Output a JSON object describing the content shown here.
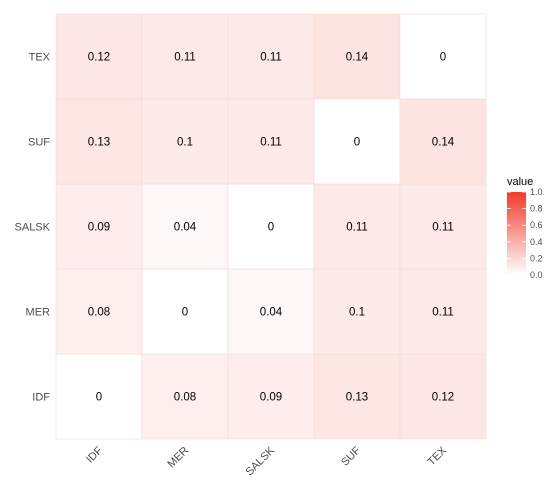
{
  "chart_data": {
    "type": "heatmap",
    "x_categories": [
      "IDF",
      "MER",
      "SALSK",
      "SUF",
      "TEX"
    ],
    "y_categories": [
      "IDF",
      "MER",
      "SALSK",
      "SUF",
      "TEX"
    ],
    "values": [
      [
        0,
        0.08,
        0.09,
        0.13,
        0.12
      ],
      [
        0.08,
        0,
        0.04,
        0.1,
        0.11
      ],
      [
        0.09,
        0.04,
        0,
        0.11,
        0.11
      ],
      [
        0.13,
        0.1,
        0.11,
        0,
        0.14
      ],
      [
        0.12,
        0.11,
        0.11,
        0.14,
        0
      ]
    ],
    "title": "",
    "xlabel": "",
    "ylabel": "",
    "legend": {
      "title": "value",
      "position": "right",
      "range": [
        0,
        1
      ],
      "ticks": [
        "0.0",
        "0.2",
        "0.4",
        "0.6",
        "0.8",
        "1.0"
      ],
      "color_low": "#ffffff",
      "color_high": "#ef3b2c"
    },
    "grid": true
  }
}
